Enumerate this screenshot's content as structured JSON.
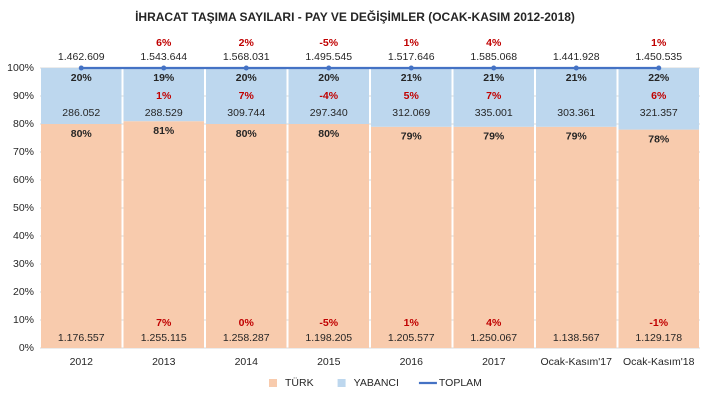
{
  "chart_data": {
    "type": "stacked-bar-100",
    "title": "İHRACAT TAŞIMA SAYILARI - PAY VE DEĞİŞİMLER (OCAK-KASIM 2012-2018)",
    "categories": [
      "2012",
      "2013",
      "2014",
      "2015",
      "2016",
      "2017",
      "Ocak-Kasım'17",
      "Ocak-Kasım'18"
    ],
    "ylim": [
      0,
      100
    ],
    "yticks": [
      {
        "value": 0,
        "label": "0%"
      },
      {
        "value": 10,
        "label": "10%"
      },
      {
        "value": 20,
        "label": "20%"
      },
      {
        "value": 30,
        "label": "30%"
      },
      {
        "value": 40,
        "label": "40%"
      },
      {
        "value": 50,
        "label": "50%"
      },
      {
        "value": 60,
        "label": "60%"
      },
      {
        "value": 70,
        "label": "70%"
      },
      {
        "value": 80,
        "label": "80%"
      },
      {
        "value": 90,
        "label": "90%"
      },
      {
        "value": 100,
        "label": "100%"
      }
    ],
    "grid": true,
    "series": [
      {
        "name": "TÜRK",
        "color": "#f8cbad",
        "values": [
          80,
          81,
          80,
          80,
          79,
          79,
          79,
          78
        ],
        "value_labels": [
          "80%",
          "81%",
          "80%",
          "80%",
          "79%",
          "79%",
          "79%",
          "78%"
        ],
        "counts": [
          1176557,
          1255115,
          1258287,
          1198205,
          1205577,
          1250067,
          1138567,
          1129178
        ],
        "count_labels": [
          "1.176.557",
          "1.255.115",
          "1.258.287",
          "1.198.205",
          "1.205.577",
          "1.250.067",
          "1.138.567",
          "1.129.178"
        ],
        "changes": [
          null,
          7,
          0,
          -5,
          1,
          4,
          null,
          -1
        ],
        "change_labels": [
          null,
          "7%",
          "0%",
          "-5%",
          "1%",
          "4%",
          null,
          "-1%"
        ]
      },
      {
        "name": "YABANCI",
        "color": "#bdd7ee",
        "values": [
          20,
          19,
          20,
          20,
          21,
          21,
          21,
          22
        ],
        "value_labels": [
          "20%",
          "19%",
          "20%",
          "20%",
          "21%",
          "21%",
          "21%",
          "22%"
        ],
        "counts": [
          286052,
          288529,
          309744,
          297340,
          312069,
          335001,
          303361,
          321357
        ],
        "count_labels": [
          "286.052",
          "288.529",
          "309.744",
          "297.340",
          "312.069",
          "335.001",
          "303.361",
          "321.357"
        ],
        "changes": [
          null,
          1,
          7,
          -4,
          5,
          7,
          null,
          6
        ],
        "change_labels": [
          null,
          "1%",
          "7%",
          "-4%",
          "5%",
          "7%",
          null,
          "6%"
        ]
      },
      {
        "name": "TOPLAM",
        "color": "#4472c4",
        "kind": "line",
        "values": [
          100,
          100,
          100,
          100,
          100,
          100,
          100,
          100
        ],
        "counts": [
          1462609,
          1543644,
          1568031,
          1495545,
          1517646,
          1585068,
          1441928,
          1450535
        ],
        "count_labels": [
          "1.462.609",
          "1.543.644",
          "1.568.031",
          "1.495.545",
          "1.517.646",
          "1.585.068",
          "1.441.928",
          "1.450.535"
        ],
        "changes": [
          null,
          6,
          2,
          -5,
          1,
          4,
          null,
          1
        ],
        "change_labels": [
          null,
          "6%",
          "2%",
          "-5%",
          "1%",
          "4%",
          null,
          "1%"
        ]
      }
    ]
  }
}
